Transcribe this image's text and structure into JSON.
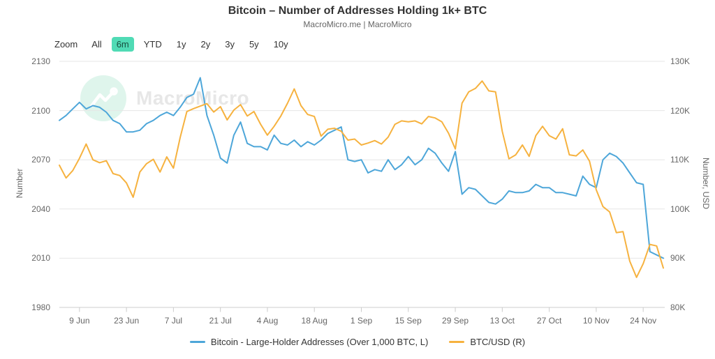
{
  "header": {
    "title": "Bitcoin – Number of Addresses Holding 1k+ BTC",
    "subtitle": "MacroMicro.me | MacroMicro"
  },
  "toolbar": {
    "label": "Zoom",
    "buttons": [
      {
        "label": "All",
        "active": false
      },
      {
        "label": "6m",
        "active": true
      },
      {
        "label": "YTD",
        "active": false
      },
      {
        "label": "1y",
        "active": false
      },
      {
        "label": "2y",
        "active": false
      },
      {
        "label": "3y",
        "active": false
      },
      {
        "label": "5y",
        "active": false
      },
      {
        "label": "10y",
        "active": false
      }
    ]
  },
  "watermark": {
    "text": "MacroMicro"
  },
  "colors": {
    "accent_teal": "#50dbb5",
    "series_addresses": "#4da6d9",
    "series_btcusd": "#f6b23f",
    "grid": "#e6e6e6",
    "axis_line": "#cccccc",
    "axis_text": "#666666"
  },
  "chart_data": {
    "type": "line",
    "title": "Bitcoin – Number of Addresses Holding 1k+ BTC",
    "x": [
      "3 Jun",
      "5 Jun",
      "7 Jun",
      "9 Jun",
      "11 Jun",
      "13 Jun",
      "15 Jun",
      "17 Jun",
      "19 Jun",
      "21 Jun",
      "23 Jun",
      "25 Jun",
      "27 Jun",
      "29 Jun",
      "1 Jul",
      "3 Jul",
      "5 Jul",
      "7 Jul",
      "9 Jul",
      "11 Jul",
      "13 Jul",
      "15 Jul",
      "17 Jul",
      "19 Jul",
      "21 Jul",
      "23 Jul",
      "25 Jul",
      "27 Jul",
      "29 Jul",
      "31 Jul",
      "2 Aug",
      "4 Aug",
      "6 Aug",
      "8 Aug",
      "10 Aug",
      "12 Aug",
      "14 Aug",
      "16 Aug",
      "18 Aug",
      "20 Aug",
      "22 Aug",
      "24 Aug",
      "26 Aug",
      "28 Aug",
      "30 Aug",
      "1 Sep",
      "3 Sep",
      "5 Sep",
      "7 Sep",
      "9 Sep",
      "11 Sep",
      "13 Sep",
      "15 Sep",
      "17 Sep",
      "19 Sep",
      "21 Sep",
      "23 Sep",
      "25 Sep",
      "27 Sep",
      "29 Sep",
      "1 Oct",
      "3 Oct",
      "5 Oct",
      "7 Oct",
      "9 Oct",
      "11 Oct",
      "13 Oct",
      "15 Oct",
      "17 Oct",
      "19 Oct",
      "21 Oct",
      "23 Oct",
      "25 Oct",
      "27 Oct",
      "29 Oct",
      "31 Oct",
      "2 Nov",
      "4 Nov",
      "6 Nov",
      "8 Nov",
      "10 Nov",
      "12 Nov",
      "14 Nov",
      "16 Nov",
      "18 Nov",
      "20 Nov",
      "22 Nov",
      "24 Nov",
      "26 Nov",
      "28 Nov",
      "29 Nov"
    ],
    "x_ticks": [
      "9 Jun",
      "23 Jun",
      "7 Jul",
      "21 Jul",
      "4 Aug",
      "18 Aug",
      "1 Sep",
      "15 Sep",
      "29 Sep",
      "13 Oct",
      "27 Oct",
      "10 Nov",
      "24 Nov"
    ],
    "y_left": {
      "title": "Number",
      "min": 1980,
      "max": 2130,
      "ticks": [
        2130,
        2100,
        2070,
        2040,
        2010,
        1980
      ]
    },
    "y_right": {
      "title": "Number, USD",
      "unit": "thousand USD",
      "min": 80,
      "max": 130,
      "ticks": [
        {
          "v": 130,
          "label": "130K"
        },
        {
          "v": 120,
          "label": "120K"
        },
        {
          "v": 110,
          "label": "110K"
        },
        {
          "v": 100,
          "label": "100K"
        },
        {
          "v": 90,
          "label": "90K"
        },
        {
          "v": 80,
          "label": "80K"
        }
      ]
    },
    "grid": true,
    "legend_position": "bottom",
    "series": [
      {
        "name": "Bitcoin - Large-Holder Addresses (Over 1,000 BTC, L)",
        "axis": "left",
        "color": "#4da6d9",
        "values": [
          2094,
          2097,
          2101,
          2105,
          2101,
          2103,
          2102,
          2099,
          2094,
          2092,
          2087,
          2087,
          2088,
          2092,
          2094,
          2097,
          2099,
          2097,
          2102,
          2108,
          2110,
          2120,
          2097,
          2085,
          2071,
          2068,
          2085,
          2093,
          2080,
          2078,
          2078,
          2076,
          2085,
          2080,
          2079,
          2082,
          2078,
          2081,
          2079,
          2082,
          2086,
          2088,
          2090,
          2070,
          2069,
          2070,
          2062,
          2064,
          2063,
          2070,
          2064,
          2067,
          2072,
          2067,
          2070,
          2077,
          2074,
          2068,
          2063,
          2075,
          2049,
          2053,
          2052,
          2048,
          2044,
          2043,
          2046,
          2051,
          2050,
          2050,
          2051,
          2055,
          2053,
          2053,
          2050,
          2050,
          2049,
          2048,
          2060,
          2055,
          2053,
          2070,
          2074,
          2072,
          2068,
          2062,
          2056,
          2055,
          2014,
          2012,
          2010
        ]
      },
      {
        "name": "BTC/USD (R)",
        "axis": "right",
        "color": "#f6b23f",
        "unit": "thousand USD",
        "values": [
          108.9,
          106.3,
          107.8,
          110.3,
          113.2,
          110.0,
          109.4,
          109.8,
          107.2,
          106.8,
          105.3,
          102.4,
          107.5,
          109.2,
          110.1,
          107.5,
          110.6,
          108.3,
          114.5,
          119.8,
          120.4,
          120.9,
          121.4,
          119.7,
          120.8,
          118.1,
          120.1,
          121.2,
          118.9,
          119.8,
          117.2,
          115.0,
          116.8,
          118.9,
          121.5,
          124.4,
          121.0,
          119.2,
          118.8,
          114.8,
          116.2,
          116.4,
          115.8,
          114.0,
          114.2,
          113.0,
          113.4,
          113.9,
          113.2,
          114.6,
          117.2,
          117.9,
          117.7,
          117.9,
          117.3,
          118.8,
          118.5,
          117.7,
          115.4,
          112.2,
          121.5,
          123.8,
          124.5,
          126.0,
          124.0,
          123.8,
          115.8,
          110.2,
          111.0,
          113.0,
          110.7,
          114.9,
          116.8,
          114.9,
          114.2,
          116.3,
          111.0,
          110.8,
          112.0,
          109.7,
          103.9,
          100.5,
          99.4,
          95.2,
          95.4,
          89.4,
          86.1,
          88.9,
          92.8,
          92.5,
          88.0
        ]
      }
    ]
  }
}
